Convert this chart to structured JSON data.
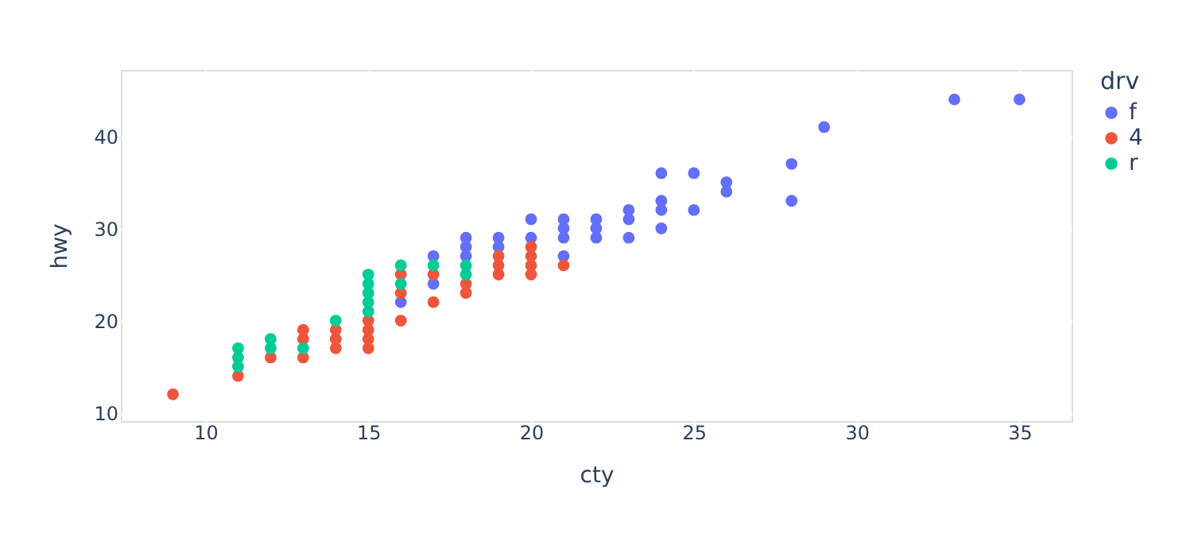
{
  "chart_data": {
    "type": "scatter",
    "xlabel": "cty",
    "ylabel": "hwy",
    "legend_title": "drv",
    "legend": "top right",
    "grid": true,
    "marker": "circle",
    "xlim": [
      7.4,
      36.6
    ],
    "ylim": [
      9.1,
      47.2
    ],
    "xticks": [
      10,
      15,
      20,
      25,
      30,
      35
    ],
    "yticks": [
      10,
      20,
      30,
      40
    ],
    "series": [
      {
        "name": "f",
        "color": "#636efa",
        "x": [
          16,
          17,
          17,
          18,
          18,
          18,
          19,
          19,
          20,
          20,
          21,
          21,
          21,
          21,
          22,
          22,
          22,
          23,
          23,
          23,
          24,
          24,
          24,
          24,
          25,
          25,
          26,
          26,
          28,
          28,
          29,
          33,
          35
        ],
        "values": [
          22,
          27,
          24,
          29,
          28,
          27,
          29,
          28,
          31,
          29,
          31,
          30,
          29,
          27,
          31,
          30,
          29,
          32,
          31,
          29,
          36,
          33,
          32,
          30,
          36,
          32,
          35,
          34,
          37,
          33,
          41,
          44,
          44
        ]
      },
      {
        "name": "4",
        "color": "#ef553b",
        "x": [
          9,
          11,
          12,
          13,
          13,
          13,
          14,
          14,
          14,
          15,
          15,
          15,
          15,
          16,
          16,
          16,
          17,
          17,
          18,
          18,
          19,
          19,
          19,
          20,
          20,
          20,
          20,
          21
        ],
        "values": [
          12,
          14,
          16,
          16,
          18,
          19,
          17,
          18,
          19,
          17,
          18,
          19,
          20,
          20,
          23,
          25,
          22,
          25,
          23,
          24,
          25,
          26,
          27,
          25,
          26,
          27,
          28,
          26
        ]
      },
      {
        "name": "r",
        "color": "#00cc96",
        "x": [
          11,
          11,
          11,
          12,
          12,
          13,
          14,
          15,
          15,
          15,
          15,
          15,
          16,
          16,
          17,
          18,
          18
        ],
        "values": [
          15,
          16,
          17,
          17,
          18,
          17,
          20,
          21,
          22,
          23,
          24,
          25,
          24,
          26,
          26,
          25,
          26
        ]
      }
    ]
  }
}
